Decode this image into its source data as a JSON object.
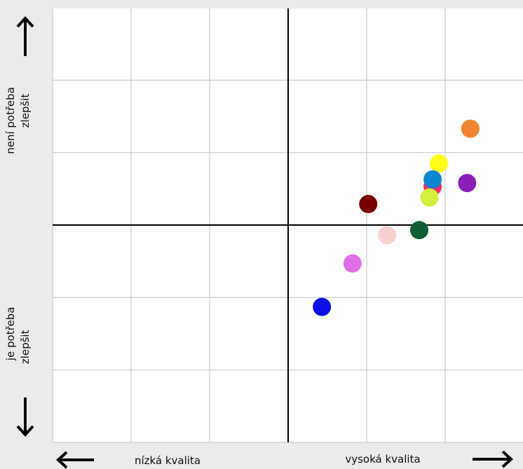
{
  "chart_data": {
    "type": "scatter",
    "xlim": [
      -3,
      3
    ],
    "ylim": [
      -3,
      3
    ],
    "grid": true,
    "points": [
      {
        "x": 2.32,
        "y": 1.33,
        "color": "#f28535"
      },
      {
        "x": 1.92,
        "y": 0.85,
        "color": "#ffff1a"
      },
      {
        "x": 2.28,
        "y": 0.58,
        "color": "#8b1fb8"
      },
      {
        "x": 1.84,
        "y": 0.53,
        "color": "#ef3060"
      },
      {
        "x": 1.84,
        "y": 0.63,
        "color": "#0a86d0"
      },
      {
        "x": 1.8,
        "y": 0.38,
        "color": "#d3f03c"
      },
      {
        "x": 1.02,
        "y": 0.29,
        "color": "#7a0000"
      },
      {
        "x": 1.67,
        "y": -0.07,
        "color": "#0d5e34"
      },
      {
        "x": 1.26,
        "y": -0.14,
        "color": "#f8d0d0"
      },
      {
        "x": 0.82,
        "y": -0.53,
        "color": "#df6fe6"
      },
      {
        "x": 0.43,
        "y": -1.13,
        "color": "#0b10e8"
      }
    ],
    "labels": {
      "y_top": "není potřeba zlepšit",
      "y_top_line1": "není potřeba",
      "y_top_line2": "zlepšit",
      "y_bottom": "je potřeba zlepšit",
      "y_bottom_line1": "je potřeba",
      "y_bottom_line2": "zlepšit",
      "x_left": "nízká kvalita",
      "x_right": "vysoká kvalita"
    }
  }
}
